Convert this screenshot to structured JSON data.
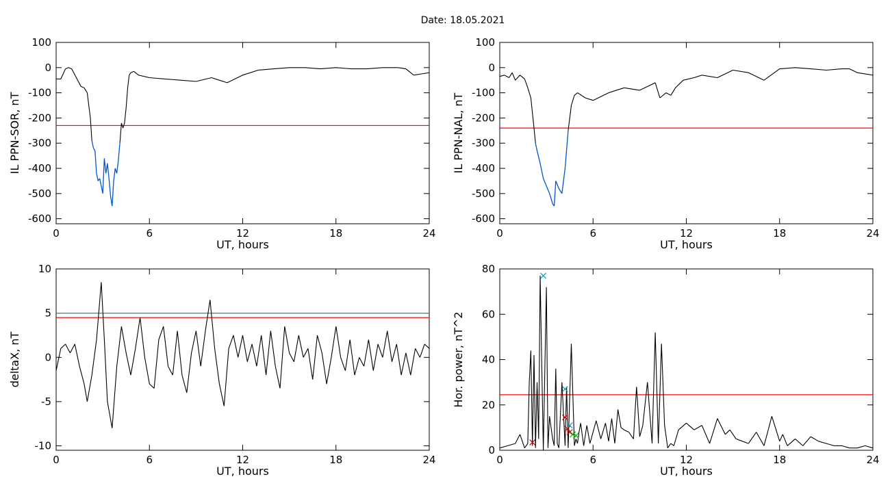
{
  "title": "Date:  18.05.2021",
  "colors": {
    "trace": "#000000",
    "threshold": "#ff0000",
    "highlight": "#0055cc",
    "alt_threshold": "#00a0b0",
    "marker_green": "#00aa00"
  },
  "chart_data": [
    {
      "type": "line",
      "ylabel": "IL PPN-SOR, nT",
      "xlabel": "UT, hours",
      "xlim": [
        0,
        24
      ],
      "ylim": [
        -620,
        100
      ],
      "xticks": [
        "0",
        "6",
        "12",
        "18",
        "24"
      ],
      "yticks": [
        "100",
        "0",
        "-100",
        "-200",
        "-300",
        "-400",
        "-500",
        "-600"
      ],
      "threshold": -230,
      "series": [
        {
          "x": [
            0,
            0.3,
            0.6,
            0.8,
            1.0,
            1.3,
            1.6,
            1.8,
            2.0,
            2.2,
            2.3,
            2.4,
            2.5,
            2.6,
            2.7,
            2.8,
            2.9,
            3.0,
            3.1,
            3.2,
            3.3,
            3.4,
            3.5,
            3.6,
            3.7,
            3.8,
            3.9,
            4.0,
            4.1,
            4.2,
            4.3,
            4.4,
            4.5,
            4.6,
            4.7,
            4.8,
            5.0,
            5.3,
            6,
            7,
            8,
            9,
            10,
            10.5,
            11,
            11.5,
            12,
            13,
            14,
            15,
            16,
            17,
            18,
            19,
            20,
            21,
            22,
            22.5,
            23,
            23.5,
            24
          ],
          "y": [
            -45,
            -45,
            -5,
            0,
            -5,
            -40,
            -75,
            -80,
            -100,
            -200,
            -290,
            -320,
            -330,
            -420,
            -450,
            -440,
            -470,
            -500,
            -360,
            -420,
            -380,
            -440,
            -510,
            -550,
            -450,
            -400,
            -420,
            -370,
            -300,
            -220,
            -240,
            -220,
            -160,
            -80,
            -30,
            -20,
            -15,
            -30,
            -40,
            -45,
            -50,
            -55,
            -40,
            -50,
            -60,
            -45,
            -30,
            -10,
            -5,
            0,
            0,
            -5,
            0,
            -5,
            -5,
            0,
            0,
            -5,
            -30,
            -25,
            -20
          ]
        }
      ]
    },
    {
      "type": "line",
      "ylabel": "IL PPN-NAL, nT",
      "xlabel": "UT, hours",
      "xlim": [
        0,
        24
      ],
      "ylim": [
        -620,
        100
      ],
      "xticks": [
        "0",
        "6",
        "12",
        "18",
        "24"
      ],
      "yticks": [
        "100",
        "0",
        "-100",
        "-200",
        "-300",
        "-400",
        "-500",
        "-600"
      ],
      "threshold": -240,
      "series": [
        {
          "x": [
            0,
            0.3,
            0.6,
            0.8,
            1.0,
            1.3,
            1.6,
            1.8,
            2.0,
            2.2,
            2.3,
            2.4,
            2.6,
            2.8,
            3.0,
            3.2,
            3.4,
            3.5,
            3.6,
            3.8,
            4.0,
            4.2,
            4.4,
            4.6,
            4.8,
            5.0,
            5.5,
            6,
            7,
            8,
            9,
            10,
            10.3,
            10.7,
            11,
            11.3,
            11.8,
            12.5,
            13,
            14,
            15,
            16,
            17,
            18,
            19,
            20,
            21,
            22,
            22.5,
            23,
            24
          ],
          "y": [
            -35,
            -30,
            -40,
            -20,
            -50,
            -30,
            -45,
            -80,
            -120,
            -240,
            -300,
            -330,
            -380,
            -440,
            -470,
            -500,
            -540,
            -550,
            -450,
            -480,
            -500,
            -400,
            -250,
            -150,
            -110,
            -100,
            -120,
            -130,
            -100,
            -80,
            -90,
            -60,
            -120,
            -100,
            -110,
            -80,
            -50,
            -40,
            -30,
            -40,
            -10,
            -20,
            -50,
            -5,
            0,
            -5,
            -10,
            -5,
            -5,
            -20,
            -30
          ]
        }
      ]
    },
    {
      "type": "line",
      "ylabel": "deltaX, nT",
      "xlabel": "UT, hours",
      "xlim": [
        0,
        24
      ],
      "ylim": [
        -10.5,
        10
      ],
      "xticks": [
        "0",
        "6",
        "12",
        "18",
        "24"
      ],
      "yticks": [
        "10",
        "5",
        "0",
        "-5",
        "-10"
      ],
      "threshold": 4.5,
      "alt_threshold": 5.0,
      "series": [
        {
          "x": [
            0,
            0.3,
            0.6,
            0.9,
            1.2,
            1.5,
            1.8,
            2.0,
            2.3,
            2.6,
            2.9,
            3.1,
            3.3,
            3.6,
            3.9,
            4.2,
            4.5,
            4.8,
            5.1,
            5.4,
            5.7,
            6.0,
            6.3,
            6.6,
            6.9,
            7.2,
            7.5,
            7.8,
            8.1,
            8.4,
            8.7,
            9.0,
            9.3,
            9.6,
            9.9,
            10.2,
            10.5,
            10.8,
            11.1,
            11.4,
            11.7,
            12.0,
            12.3,
            12.6,
            12.9,
            13.2,
            13.5,
            13.8,
            14.1,
            14.4,
            14.7,
            15.0,
            15.3,
            15.6,
            15.9,
            16.2,
            16.5,
            16.8,
            17.1,
            17.4,
            17.7,
            18.0,
            18.3,
            18.6,
            18.9,
            19.2,
            19.5,
            19.8,
            20.1,
            20.4,
            20.7,
            21.0,
            21.3,
            21.6,
            21.9,
            22.2,
            22.5,
            22.8,
            23.1,
            23.4,
            23.7,
            24
          ],
          "y": [
            -1.5,
            1.0,
            1.5,
            0.5,
            1.5,
            -1.0,
            -3.0,
            -5.0,
            -2.0,
            2.0,
            8.5,
            2.0,
            -5.0,
            -8.0,
            -1.0,
            3.5,
            0.5,
            -2.0,
            1.0,
            4.5,
            0.0,
            -3.0,
            -3.5,
            2.0,
            3.5,
            -1.0,
            -2.0,
            3.0,
            -2.0,
            -4.0,
            0.5,
            3.0,
            -1.0,
            3.0,
            6.5,
            1.0,
            -3.0,
            -5.5,
            1.0,
            2.5,
            0.0,
            2.5,
            -0.5,
            1.5,
            -1.0,
            2.5,
            -2.0,
            3.0,
            -1.0,
            -3.5,
            3.5,
            0.5,
            -0.5,
            2.5,
            0.0,
            1.0,
            -2.5,
            2.5,
            0.5,
            -3.0,
            0.0,
            3.5,
            0.0,
            -1.5,
            2.0,
            -2.0,
            0.0,
            -1.0,
            2.0,
            -1.5,
            1.5,
            0.0,
            3.0,
            -0.5,
            1.5,
            -2.0,
            0.5,
            -2.0,
            1.0,
            0.0,
            1.5,
            1.0
          ]
        }
      ]
    },
    {
      "type": "line",
      "ylabel": "Hor. power, nT^2",
      "xlabel": "UT, hours",
      "xlim": [
        0,
        24
      ],
      "ylim": [
        0,
        80
      ],
      "xticks": [
        "0",
        "6",
        "12",
        "18",
        "24"
      ],
      "yticks": [
        "80",
        "60",
        "40",
        "20",
        "0"
      ],
      "threshold": 24.5,
      "markers": [
        {
          "x": 2.8,
          "y": 77,
          "color": "#00a0b0"
        },
        {
          "x": 4.2,
          "y": 27,
          "color": "#00a0b0"
        },
        {
          "x": 2.1,
          "y": 3.5,
          "color": "#cc0000"
        },
        {
          "x": 4.2,
          "y": 14.5,
          "color": "#cc0000"
        },
        {
          "x": 4.35,
          "y": 9.5,
          "color": "#cc0000"
        },
        {
          "x": 4.5,
          "y": 8,
          "color": "#cc0000"
        },
        {
          "x": 4.5,
          "y": 11,
          "color": "#00a0b0"
        },
        {
          "x": 4.7,
          "y": 7,
          "color": "#00aa00"
        },
        {
          "x": 4.9,
          "y": 6.5,
          "color": "#00aa00"
        }
      ],
      "series": [
        {
          "x": [
            0,
            0.5,
            1.0,
            1.3,
            1.6,
            1.8,
            1.9,
            2.0,
            2.1,
            2.2,
            2.3,
            2.4,
            2.5,
            2.6,
            2.8,
            3.0,
            3.1,
            3.2,
            3.4,
            3.5,
            3.6,
            3.7,
            3.8,
            4.0,
            4.2,
            4.3,
            4.4,
            4.6,
            4.8,
            4.9,
            5.0,
            5.1,
            5.2,
            5.4,
            5.6,
            5.8,
            6.2,
            6.5,
            6.8,
            7.0,
            7.2,
            7.4,
            7.6,
            7.8,
            8.0,
            8.3,
            8.6,
            8.8,
            9.0,
            9.2,
            9.5,
            9.8,
            10.0,
            10.2,
            10.4,
            10.6,
            10.8,
            11.0,
            11.2,
            11.5,
            12.0,
            12.5,
            13.0,
            13.5,
            14.0,
            14.5,
            14.8,
            15.2,
            15.6,
            16.0,
            16.5,
            17.0,
            17.5,
            18.0,
            18.2,
            18.5,
            19.0,
            19.5,
            20.0,
            20.5,
            21.0,
            21.5,
            22.0,
            22.5,
            23.0,
            23.5,
            24.0
          ],
          "y": [
            1,
            2,
            3,
            7,
            1,
            3,
            30,
            44,
            2,
            42,
            1,
            30,
            5,
            77,
            0,
            72,
            1,
            15,
            5,
            2,
            36,
            3,
            1,
            30,
            2,
            28,
            1,
            47,
            2,
            5,
            3,
            8,
            12,
            2,
            11,
            3,
            13,
            5,
            12,
            4,
            14,
            3,
            18,
            10,
            9,
            8,
            5,
            28,
            6,
            11,
            30,
            3,
            52,
            3,
            47,
            11,
            1,
            3,
            2,
            9,
            12,
            9,
            11,
            3,
            14,
            7,
            9,
            5,
            4,
            3,
            8,
            2,
            15,
            4,
            7,
            2,
            5,
            2,
            6,
            4,
            3,
            2,
            2,
            1,
            1,
            2,
            1
          ]
        }
      ]
    }
  ]
}
